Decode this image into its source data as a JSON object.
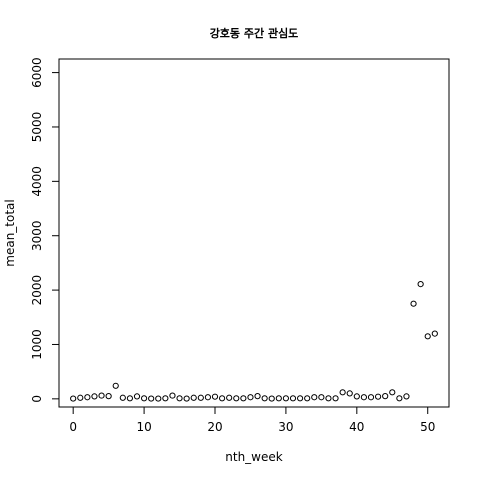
{
  "chart_data": {
    "type": "scatter",
    "title": "강호동 주간 관심도",
    "xlabel": "nth_week",
    "ylabel": "mean_total",
    "xlim": [
      -2,
      53
    ],
    "ylim": [
      -150,
      6250
    ],
    "x_ticks": [
      0,
      10,
      20,
      30,
      40,
      50
    ],
    "y_ticks": [
      0,
      1000,
      2000,
      3000,
      4000,
      5000,
      6000
    ],
    "grid": false,
    "legend": "none",
    "x": [
      0,
      1,
      2,
      3,
      4,
      5,
      6,
      7,
      8,
      9,
      10,
      11,
      12,
      13,
      14,
      15,
      16,
      17,
      18,
      19,
      20,
      21,
      22,
      23,
      24,
      25,
      26,
      27,
      28,
      29,
      30,
      31,
      32,
      33,
      34,
      35,
      36,
      37,
      38,
      39,
      40,
      41,
      42,
      43,
      44,
      45,
      46,
      47,
      48,
      49,
      50,
      51
    ],
    "y": [
      5,
      20,
      30,
      45,
      60,
      50,
      240,
      20,
      10,
      45,
      10,
      5,
      5,
      10,
      60,
      10,
      5,
      20,
      20,
      30,
      40,
      10,
      20,
      10,
      10,
      30,
      50,
      10,
      5,
      10,
      10,
      10,
      10,
      10,
      30,
      30,
      10,
      10,
      120,
      100,
      45,
      30,
      30,
      40,
      50,
      120,
      10,
      45,
      1750,
      2110,
      1150,
      1200
    ]
  }
}
